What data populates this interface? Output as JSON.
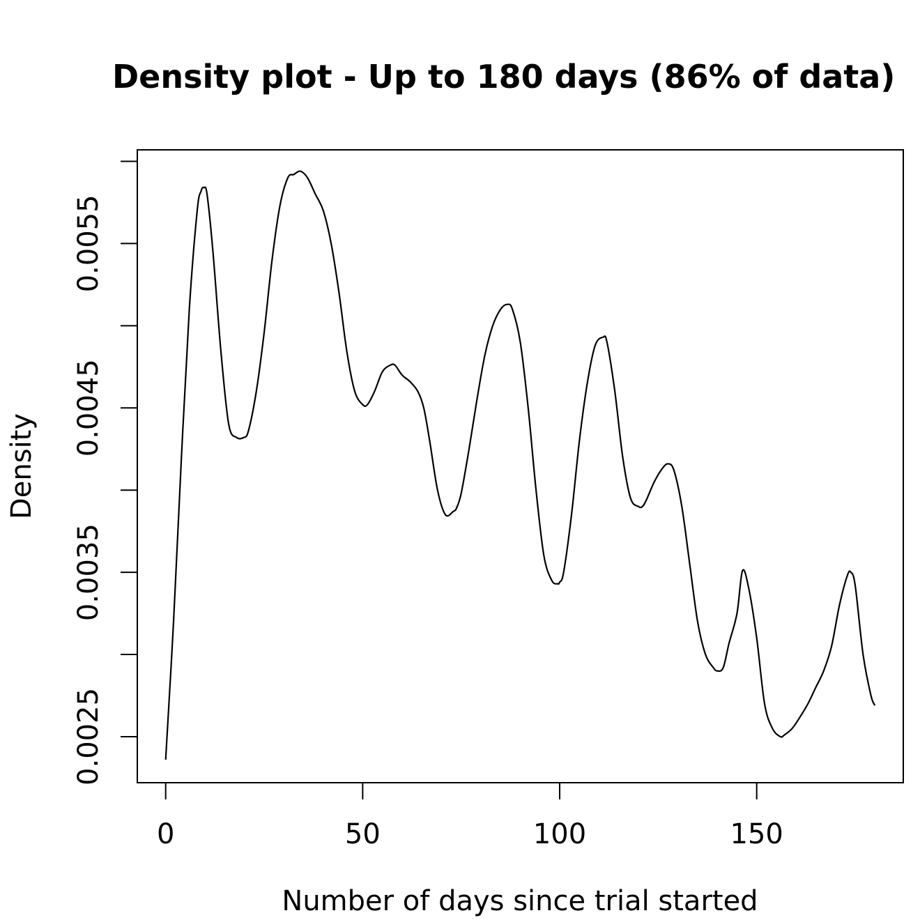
{
  "chart_data": {
    "type": "line",
    "title": "Density plot - Up to 180 days (86% of data)",
    "xlabel": "Number of days since trial started",
    "ylabel": "Density",
    "xlim": [
      -7.2,
      187.2
    ],
    "ylim": [
      0.00222,
      0.00607
    ],
    "x_ticks": [
      0,
      50,
      100,
      150
    ],
    "x_tick_labels": [
      "0",
      "50",
      "100",
      "150"
    ],
    "y_ticks": [
      0.0025,
      0.003,
      0.0035,
      0.004,
      0.0045,
      0.005,
      0.0055,
      0.006
    ],
    "y_tick_labels": [
      "0.0025",
      "",
      "0.0035",
      "",
      "0.0045",
      "",
      "0.0055",
      ""
    ],
    "grid": false,
    "legend": "none",
    "series": [
      {
        "color": "#000000",
        "x": [
          0,
          2,
          4,
          6,
          8,
          9,
          9.7,
          10.5,
          12,
          14,
          16,
          18,
          19.8,
          21,
          23,
          25,
          27,
          29,
          31,
          32.5,
          34.2,
          36,
          38,
          40,
          42,
          44,
          46,
          48,
          50,
          51.2,
          53,
          55,
          57,
          58.2,
          60,
          62,
          64,
          65.5,
          67,
          69,
          71,
          73,
          73.8,
          75,
          77,
          79,
          81,
          83,
          85,
          86.7,
          88,
          90,
          92,
          94,
          96,
          98,
          99.5,
          100,
          101,
          103,
          105,
          107,
          109,
          111,
          112,
          114,
          116,
          118,
          120,
          121,
          122,
          124,
          126,
          127.5,
          129,
          131,
          133,
          135,
          137,
          139,
          140,
          141.5,
          143,
          145,
          146.4,
          148,
          150,
          152,
          154,
          156,
          157,
          159,
          161,
          163,
          165,
          167,
          169,
          171,
          173,
          173.9,
          175,
          177,
          179,
          180
        ],
        "y": [
          0.00236,
          0.0032,
          0.0042,
          0.0051,
          0.0057,
          0.00582,
          0.00584,
          0.0058,
          0.00545,
          0.00485,
          0.0044,
          0.00432,
          0.00432,
          0.00436,
          0.0046,
          0.00496,
          0.0054,
          0.00573,
          0.0059,
          0.00592,
          0.00594,
          0.0059,
          0.0058,
          0.0057,
          0.0055,
          0.0052,
          0.00484,
          0.0046,
          0.00452,
          0.00452,
          0.0046,
          0.00472,
          0.00476,
          0.00476,
          0.0047,
          0.00466,
          0.0046,
          0.0045,
          0.0043,
          0.004,
          0.00385,
          0.00387,
          0.00389,
          0.00398,
          0.00425,
          0.00455,
          0.00482,
          0.005,
          0.0051,
          0.00513,
          0.0051,
          0.0049,
          0.0045,
          0.004,
          0.0036,
          0.00345,
          0.00343,
          0.00344,
          0.0035,
          0.00385,
          0.0043,
          0.00465,
          0.00488,
          0.00493,
          0.0049,
          0.0046,
          0.0042,
          0.00395,
          0.0039,
          0.0039,
          0.00394,
          0.00405,
          0.00413,
          0.00416,
          0.00412,
          0.0039,
          0.00355,
          0.0032,
          0.003,
          0.00292,
          0.0029,
          0.00292,
          0.00307,
          0.00325,
          0.00351,
          0.0034,
          0.0031,
          0.0027,
          0.00255,
          0.0025,
          0.00251,
          0.00255,
          0.00262,
          0.0027,
          0.0028,
          0.0029,
          0.00305,
          0.0033,
          0.00348,
          0.0035,
          0.00342,
          0.003,
          0.00275,
          0.00269
        ]
      }
    ]
  }
}
